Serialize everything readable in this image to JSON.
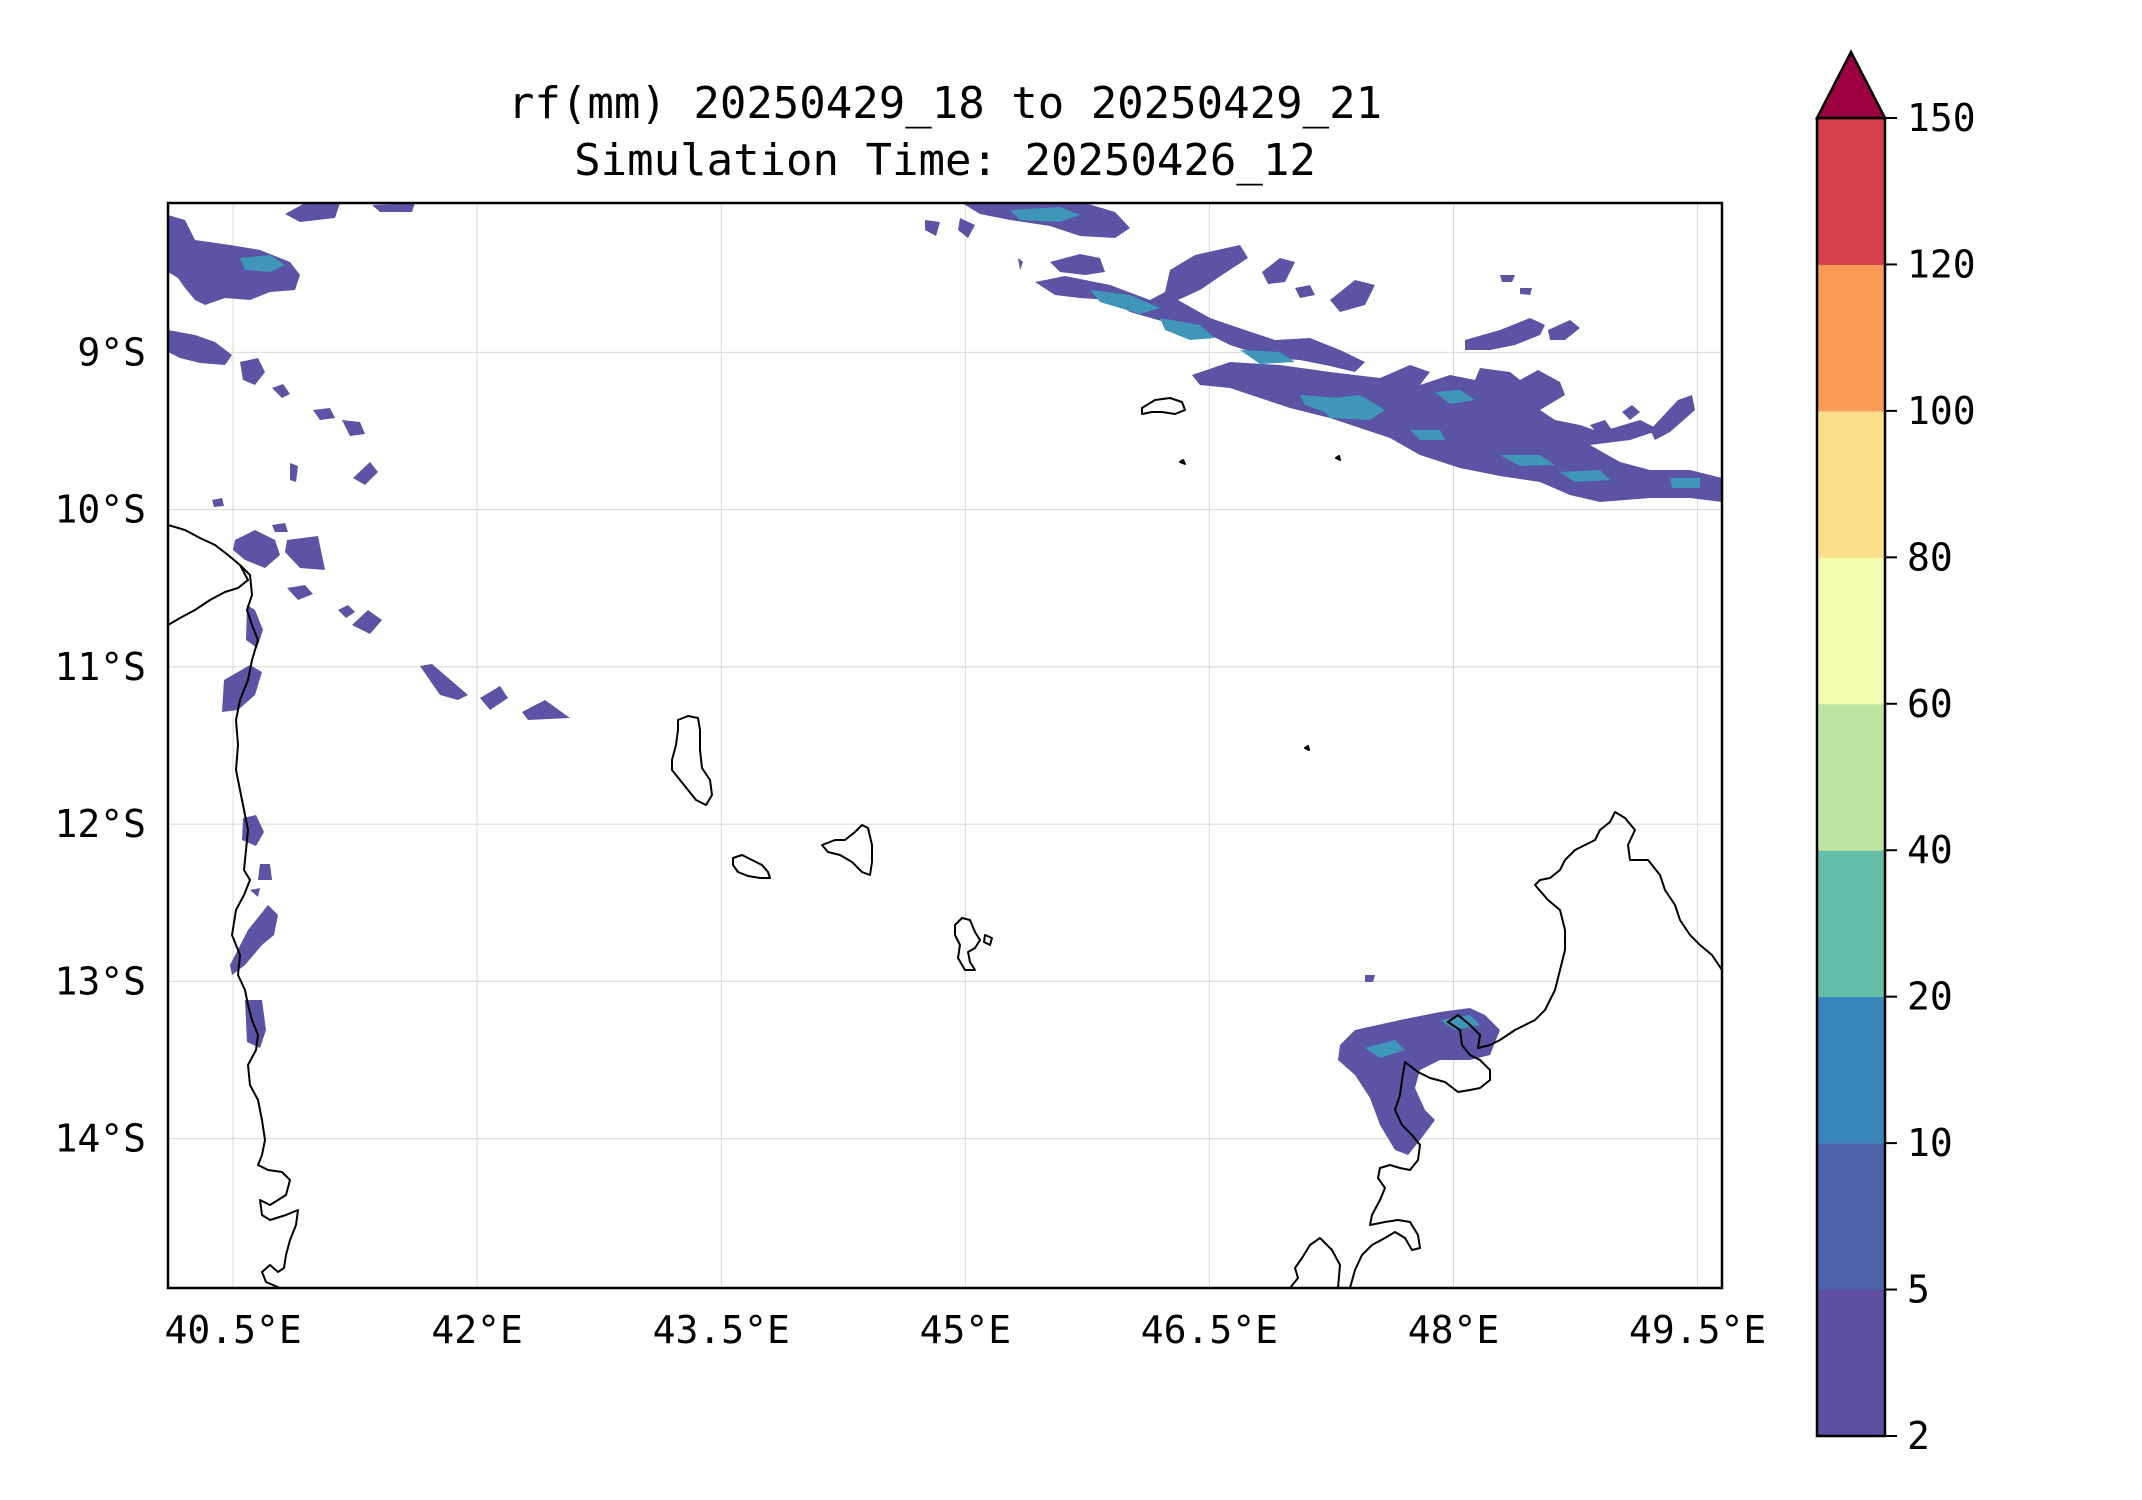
{
  "title": {
    "line1": "rf(mm) 20250429_18 to 20250429_21",
    "line2": "Simulation Time: 20250426_12"
  },
  "map": {
    "lon_range": [
      40.1,
      49.65
    ],
    "lat_range": [
      -14.95,
      -8.05
    ],
    "lon_ticks": [
      40.5,
      42,
      43.5,
      45,
      46.5,
      48,
      49.5
    ],
    "lon_tick_labels": [
      "40.5°E",
      "42°E",
      "43.5°E",
      "45°E",
      "46.5°E",
      "48°E",
      "49.5°E"
    ],
    "lat_ticks": [
      -9,
      -10,
      -11,
      -12,
      -13,
      -14
    ],
    "lat_tick_labels": [
      "9°S",
      "10°S",
      "11°S",
      "12°S",
      "13°S",
      "14°S"
    ],
    "grid": true
  },
  "colorbar": {
    "label_values": [
      "2",
      "5",
      "10",
      "20",
      "40",
      "60",
      "80",
      "100",
      "120",
      "150"
    ],
    "colors": [
      "#5e4fa2",
      "#4e62ab",
      "#3a86bc",
      "#64bea7",
      "#bde4a0",
      "#f5fbae",
      "#fddf8b",
      "#fa9a57",
      "#d53f4e"
    ],
    "extend_color": "#9e0142",
    "extend": "max"
  }
}
